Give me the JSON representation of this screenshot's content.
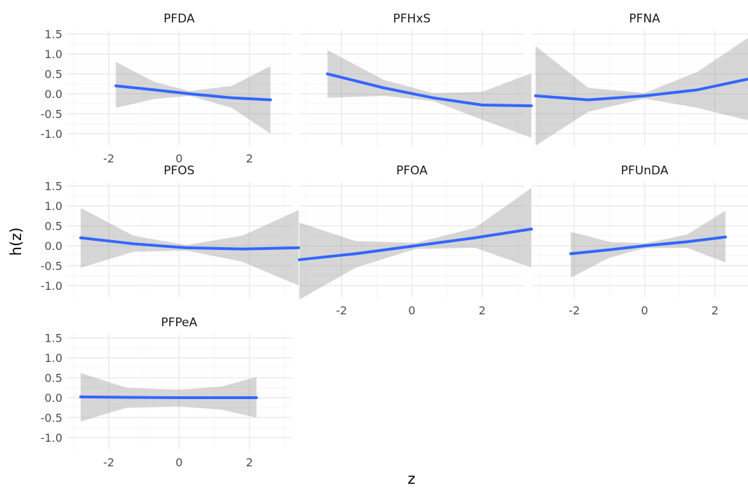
{
  "chart_data": {
    "type": "line",
    "xlabel": "z",
    "ylabel": "h(z)",
    "xlim": [
      -3.2,
      3.2
    ],
    "ylim": [
      -1.3,
      1.6
    ],
    "x_ticks": [
      -2,
      0,
      2
    ],
    "x_tick_labels": [
      "-2",
      "0",
      "2"
    ],
    "y_ticks": [
      -1.0,
      -0.5,
      0.0,
      0.5,
      1.0,
      1.5
    ],
    "y_tick_labels": [
      "-1.0",
      "-0.5",
      "0.0",
      "0.5",
      "1.0",
      "1.5"
    ],
    "grid": true,
    "colors": {
      "line": "#3366FF",
      "ribbon": "#999999"
    },
    "facets": [
      {
        "name": "PFDA",
        "x": [
          -1.8,
          -0.7,
          0.3,
          1.5,
          2.6
        ],
        "y": [
          0.2,
          0.1,
          0.0,
          -0.1,
          -0.15
        ],
        "ymin": [
          -0.35,
          -0.13,
          -0.05,
          -0.35,
          -1.0
        ],
        "ymax": [
          0.8,
          0.3,
          0.07,
          0.2,
          0.7
        ]
      },
      {
        "name": "PFHxS",
        "x": [
          -2.4,
          -0.8,
          0.6,
          2.0,
          3.4
        ],
        "y": [
          0.5,
          0.15,
          -0.1,
          -0.28,
          -0.3
        ],
        "ymin": [
          -0.1,
          -0.05,
          -0.18,
          -0.65,
          -1.1
        ],
        "ymax": [
          1.1,
          0.35,
          0.02,
          0.05,
          0.52
        ]
      },
      {
        "name": "PFNA",
        "x": [
          -3.1,
          -1.6,
          0.0,
          1.5,
          3.1
        ],
        "y": [
          -0.05,
          -0.15,
          -0.05,
          0.1,
          0.4
        ],
        "ymin": [
          -1.3,
          -0.45,
          -0.12,
          -0.35,
          -0.7
        ],
        "ymax": [
          1.2,
          0.15,
          0.02,
          0.55,
          1.5
        ]
      },
      {
        "name": "PFOS",
        "x": [
          -2.8,
          -1.3,
          0.2,
          1.8,
          3.4
        ],
        "y": [
          0.2,
          0.05,
          -0.05,
          -0.08,
          -0.05
        ],
        "ymin": [
          -0.55,
          -0.15,
          -0.12,
          -0.4,
          -1.0
        ],
        "ymax": [
          0.95,
          0.25,
          0.02,
          0.25,
          0.9
        ]
      },
      {
        "name": "PFOA",
        "x": [
          -3.2,
          -1.6,
          0.1,
          1.8,
          3.4
        ],
        "y": [
          -0.35,
          -0.2,
          0.0,
          0.2,
          0.42
        ],
        "ymin": [
          -1.35,
          -0.55,
          -0.08,
          -0.05,
          -0.55
        ],
        "ymax": [
          0.58,
          0.12,
          0.07,
          0.45,
          1.45
        ]
      },
      {
        "name": "PFUnDA",
        "x": [
          -2.1,
          -1.0,
          0.0,
          1.2,
          2.3
        ],
        "y": [
          -0.2,
          -0.1,
          0.0,
          0.1,
          0.22
        ],
        "ymin": [
          -0.8,
          -0.3,
          -0.06,
          -0.05,
          -0.42
        ],
        "ymax": [
          0.35,
          0.1,
          0.06,
          0.28,
          0.88
        ]
      },
      {
        "name": "PFPeA",
        "x": [
          -2.8,
          -1.5,
          0.0,
          1.2,
          2.2
        ],
        "y": [
          0.02,
          0.01,
          0.0,
          0.0,
          0.0
        ],
        "ymin": [
          -0.6,
          -0.25,
          -0.22,
          -0.3,
          -0.5
        ],
        "ymax": [
          0.62,
          0.25,
          0.2,
          0.28,
          0.52
        ]
      }
    ]
  }
}
